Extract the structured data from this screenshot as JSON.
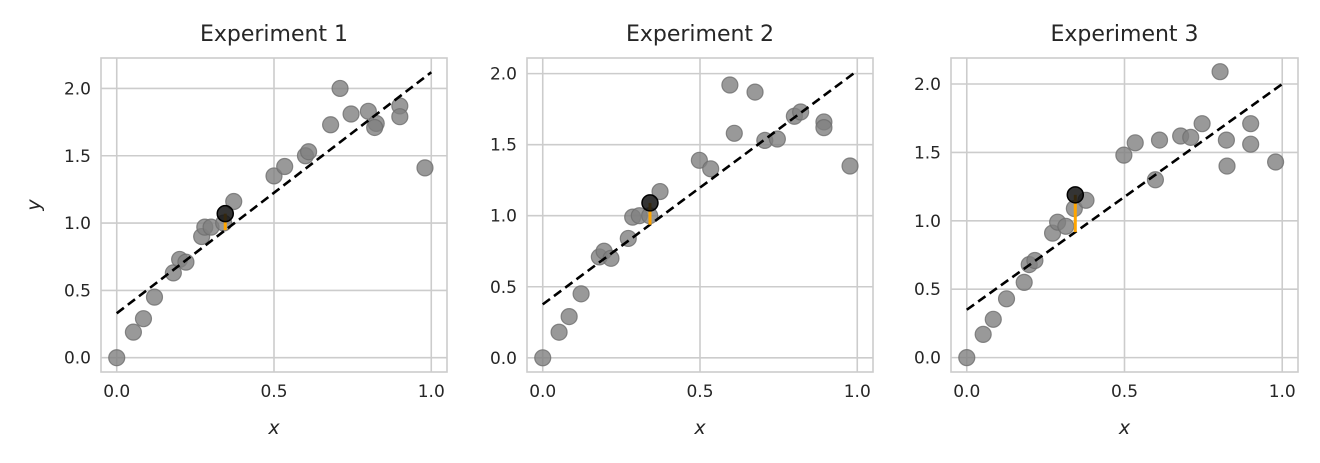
{
  "chart_data": [
    {
      "type": "scatter",
      "title": "Experiment 1",
      "xlabel": "x",
      "ylabel": "y",
      "xlim": [
        -0.05,
        1.05
      ],
      "ylim": [
        -0.106,
        2.226
      ],
      "xticks": [
        "0.0",
        "0.5",
        "1.0"
      ],
      "yticks": [
        "0.0",
        "0.5",
        "1.0",
        "1.5",
        "2.0"
      ],
      "grid": true,
      "point_color": "#808080",
      "highlight_color": "#111111",
      "residual_color": "#ffa500",
      "fit_line_color": "#000000",
      "points": {
        "x": [
          0,
          0.053,
          0.085,
          0.12,
          0.18,
          0.2,
          0.22,
          0.27,
          0.28,
          0.3,
          0.34,
          0.372,
          0.5,
          0.534,
          0.6,
          0.61,
          0.68,
          0.71,
          0.745,
          0.8,
          0.825,
          0.82,
          0.9,
          0.9,
          0.98
        ],
        "y": [
          0,
          0.19,
          0.29,
          0.45,
          0.63,
          0.73,
          0.71,
          0.9,
          0.97,
          0.97,
          1.0,
          1.16,
          1.35,
          1.42,
          1.5,
          1.53,
          1.73,
          2.0,
          1.81,
          1.83,
          1.74,
          1.71,
          1.87,
          1.79,
          1.41
        ]
      },
      "highlight": {
        "x": 0.345,
        "y": 1.07
      },
      "fit_line": {
        "intercept": 0.33,
        "slope": 1.79
      }
    },
    {
      "type": "scatter",
      "title": "Experiment 2",
      "xlabel": "x",
      "ylabel": "",
      "xlim": [
        -0.05,
        1.05
      ],
      "ylim": [
        -0.1,
        2.11
      ],
      "xticks": [
        "0.0",
        "0.5",
        "1.0"
      ],
      "yticks": [
        "0.0",
        "0.5",
        "1.0",
        "1.5",
        "2.0"
      ],
      "grid": true,
      "point_color": "#808080",
      "highlight_color": "#111111",
      "residual_color": "#ffa500",
      "fit_line_color": "#000000",
      "points": {
        "x": [
          0,
          0.052,
          0.084,
          0.122,
          0.18,
          0.195,
          0.217,
          0.272,
          0.286,
          0.307,
          0.34,
          0.373,
          0.498,
          0.534,
          0.595,
          0.609,
          0.675,
          0.706,
          0.746,
          0.8,
          0.82,
          0.894,
          0.894,
          0.977
        ],
        "y": [
          0,
          0.18,
          0.29,
          0.45,
          0.71,
          0.75,
          0.7,
          0.84,
          0.99,
          1.0,
          1.0,
          1.17,
          1.39,
          1.33,
          1.92,
          1.58,
          1.87,
          1.53,
          1.54,
          1.7,
          1.73,
          1.66,
          1.62,
          1.35
        ]
      },
      "highlight": {
        "x": 0.341,
        "y": 1.09
      },
      "fit_line": {
        "intercept": 0.376,
        "slope": 1.644
      }
    },
    {
      "type": "scatter",
      "title": "Experiment 3",
      "xlabel": "x",
      "ylabel": "",
      "xlim": [
        -0.05,
        1.05
      ],
      "ylim": [
        -0.105,
        2.19
      ],
      "xticks": [
        "0.0",
        "0.5",
        "1.0"
      ],
      "yticks": [
        "0.0",
        "0.5",
        "1.0",
        "1.5",
        "2.0"
      ],
      "grid": true,
      "point_color": "#808080",
      "highlight_color": "#111111",
      "residual_color": "#ffa500",
      "fit_line_color": "#000000",
      "points": {
        "x": [
          0,
          0.052,
          0.084,
          0.126,
          0.182,
          0.198,
          0.216,
          0.272,
          0.288,
          0.314,
          0.341,
          0.378,
          0.498,
          0.534,
          0.598,
          0.611,
          0.678,
          0.71,
          0.746,
          0.803,
          0.823,
          0.825,
          0.9,
          0.9,
          0.979
        ],
        "y": [
          0,
          0.17,
          0.28,
          0.43,
          0.55,
          0.68,
          0.71,
          0.91,
          0.99,
          0.96,
          1.09,
          1.15,
          1.48,
          1.57,
          1.3,
          1.59,
          1.62,
          1.61,
          1.71,
          2.09,
          1.59,
          1.4,
          1.71,
          1.56,
          1.43
        ]
      },
      "highlight": {
        "x": 0.344,
        "y": 1.19
      },
      "fit_line": {
        "intercept": 0.35,
        "slope": 1.65
      }
    }
  ]
}
